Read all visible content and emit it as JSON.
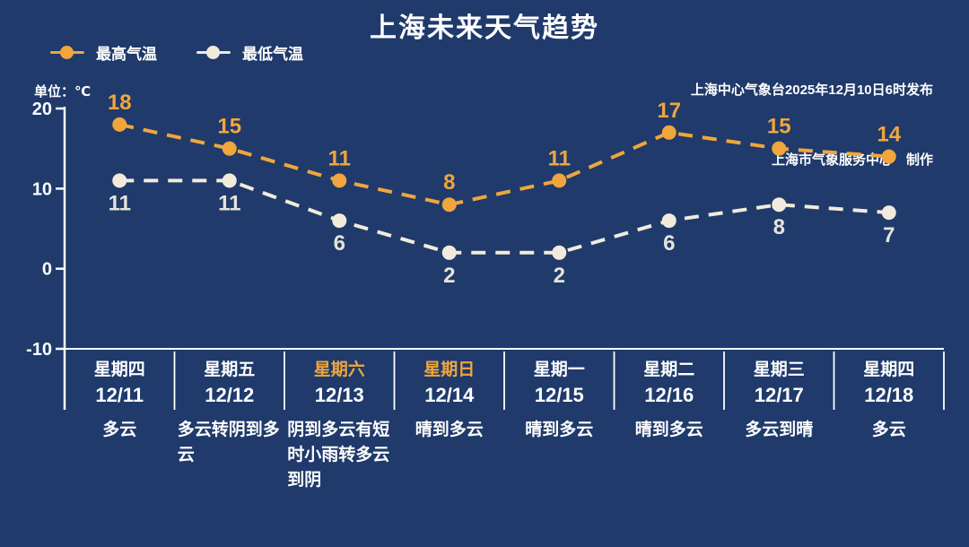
{
  "title": "上海未来天气趋势",
  "publisher": {
    "line1": "上海中心气象台2025年12月10日6时发布",
    "line2": "上海市气象服务中心　制作"
  },
  "unit_label": "单位：℃",
  "legend": {
    "items": [
      {
        "label": "最高气温",
        "color": "#F0A63C"
      },
      {
        "label": "最低气温",
        "color": "#F2EBDC"
      }
    ]
  },
  "colors": {
    "background": "#1F3A6B",
    "accent": "#F0A63C",
    "cream": "#F2EBDC",
    "min_label": "#E6E3DA",
    "axis": "#FFFFFF",
    "text": "#FFFFFF"
  },
  "chart_data": {
    "type": "line",
    "title": "上海未来天气趋势",
    "ylabel": "单位：℃",
    "categories": [
      "12/11",
      "12/12",
      "12/13",
      "12/14",
      "12/15",
      "12/16",
      "12/17",
      "12/18"
    ],
    "weekdays": [
      "星期四",
      "星期五",
      "星期六",
      "星期日",
      "星期一",
      "星期二",
      "星期三",
      "星期四"
    ],
    "series": [
      {
        "id": "max",
        "name": "最高气温",
        "values": [
          18,
          15,
          11,
          8,
          11,
          17,
          15,
          14
        ],
        "color": "#F0A63C",
        "label_color": "#F0A63C",
        "label_position": "above"
      },
      {
        "id": "min",
        "name": "最低气温",
        "values": [
          11,
          11,
          6,
          2,
          2,
          6,
          8,
          7
        ],
        "color": "#F2EBDC",
        "label_color": "#E6E3DA",
        "label_position": "below"
      }
    ],
    "ylim": [
      -10,
      20
    ],
    "yticks": [
      20,
      10,
      0,
      -10
    ],
    "grid": false,
    "line_style": "dashed",
    "legend_position": "top-left"
  },
  "days": [
    {
      "weekday": "星期四",
      "date": "12/11",
      "weather": "多云",
      "highlight": false
    },
    {
      "weekday": "星期五",
      "date": "12/12",
      "weather": "多云转阴到多云",
      "highlight": false
    },
    {
      "weekday": "星期六",
      "date": "12/13",
      "weather": "阴到多云有短时小雨转多云到阴",
      "highlight": true
    },
    {
      "weekday": "星期日",
      "date": "12/14",
      "weather": "晴到多云",
      "highlight": true
    },
    {
      "weekday": "星期一",
      "date": "12/15",
      "weather": "晴到多云",
      "highlight": false
    },
    {
      "weekday": "星期二",
      "date": "12/16",
      "weather": "晴到多云",
      "highlight": false
    },
    {
      "weekday": "星期三",
      "date": "12/17",
      "weather": "多云到晴",
      "highlight": false
    },
    {
      "weekday": "星期四",
      "date": "12/18",
      "weather": "多云",
      "highlight": false
    }
  ]
}
